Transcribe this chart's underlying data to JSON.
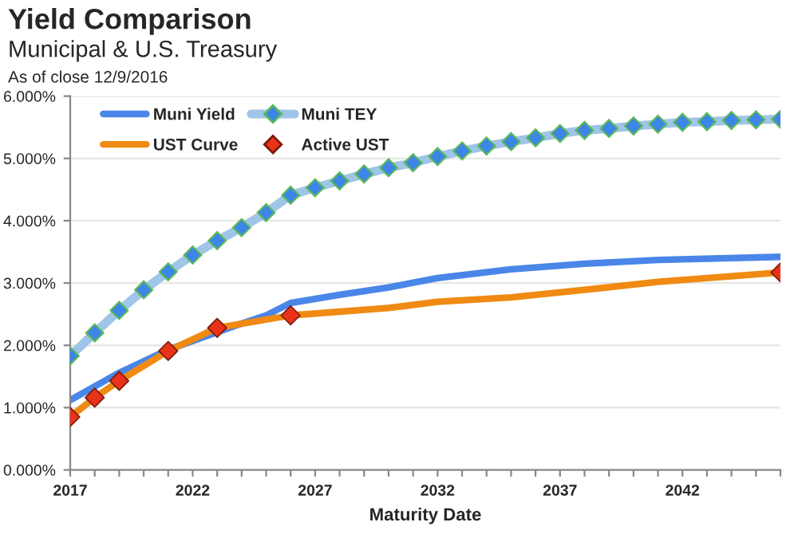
{
  "chart_data": {
    "type": "line",
    "title": "Yield Comparison",
    "subtitle": "Municipal & U.S. Treasury",
    "annotations": [
      "As of close 12/9/2016"
    ],
    "xlabel": "Maturity Date",
    "xlim": [
      2017,
      2046
    ],
    "xticks": [
      2017,
      {
        "value": 2018,
        "label": null
      },
      {
        "value": 2019,
        "label": null
      },
      {
        "value": 2020,
        "label": null
      },
      {
        "value": 2021,
        "label": null
      },
      2022,
      {
        "value": 2023,
        "label": null
      },
      {
        "value": 2024,
        "label": null
      },
      {
        "value": 2025,
        "label": null
      },
      {
        "value": 2026,
        "label": null
      },
      2027,
      {
        "value": 2028,
        "label": null
      },
      {
        "value": 2029,
        "label": null
      },
      {
        "value": 2030,
        "label": null
      },
      {
        "value": 2031,
        "label": null
      },
      2032,
      {
        "value": 2033,
        "label": null
      },
      {
        "value": 2034,
        "label": null
      },
      {
        "value": 2035,
        "label": null
      },
      {
        "value": 2036,
        "label": null
      },
      2037,
      {
        "value": 2038,
        "label": null
      },
      {
        "value": 2039,
        "label": null
      },
      {
        "value": 2040,
        "label": null
      },
      {
        "value": 2041,
        "label": null
      },
      2042,
      {
        "value": 2043,
        "label": null
      },
      {
        "value": 2044,
        "label": null
      },
      {
        "value": 2045,
        "label": null
      },
      {
        "value": 2046,
        "label": null
      }
    ],
    "ylim": [
      0,
      6
    ],
    "yticks": [
      {
        "value": 0,
        "label": "0.000%"
      },
      {
        "value": 1,
        "label": "1.000%"
      },
      {
        "value": 2,
        "label": "2.000%"
      },
      {
        "value": 3,
        "label": "3.000%"
      },
      {
        "value": 4,
        "label": "4.000%"
      },
      {
        "value": 5,
        "label": "5.000%"
      },
      {
        "value": 6,
        "label": "6.000%"
      }
    ],
    "grid": "y",
    "legend": "top left",
    "series": [
      {
        "name": "Muni Yield",
        "color": "#4a86e8",
        "marker": "none",
        "x": [
          2017,
          2019,
          2021,
          2022,
          2024,
          2025,
          2026,
          2028,
          2030,
          2032,
          2035,
          2038,
          2041,
          2046
        ],
        "values": [
          1.12,
          1.56,
          1.93,
          2.07,
          2.35,
          2.48,
          2.68,
          2.81,
          2.93,
          3.08,
          3.22,
          3.31,
          3.37,
          3.42
        ]
      },
      {
        "name": "Muni TEY",
        "color": "#9fc5e8",
        "marker": "diamond",
        "x": [
          2017,
          2018,
          2019,
          2020,
          2021,
          2022,
          2023,
          2024,
          2025,
          2026,
          2027,
          2028,
          2029,
          2030,
          2031,
          2032,
          2033,
          2034,
          2035,
          2036,
          2037,
          2038,
          2039,
          2040,
          2041,
          2042,
          2043,
          2044,
          2045,
          2046
        ],
        "values": [
          1.83,
          2.2,
          2.56,
          2.89,
          3.18,
          3.45,
          3.68,
          3.89,
          4.13,
          4.41,
          4.53,
          4.64,
          4.75,
          4.85,
          4.93,
          5.03,
          5.12,
          5.2,
          5.27,
          5.33,
          5.4,
          5.45,
          5.48,
          5.52,
          5.55,
          5.58,
          5.59,
          5.61,
          5.62,
          5.63
        ]
      },
      {
        "name": "UST Curve",
        "color": "#f08a12",
        "marker": "none",
        "x": [
          2017,
          2018,
          2019,
          2021,
          2023,
          2026,
          2030,
          2032,
          2035,
          2038,
          2041,
          2046
        ],
        "values": [
          0.85,
          1.16,
          1.43,
          1.91,
          2.28,
          2.48,
          2.6,
          2.7,
          2.77,
          2.89,
          3.02,
          3.17
        ]
      },
      {
        "name": "Active UST",
        "type": "scatter",
        "color": "#e8331a",
        "marker": "diamond",
        "x": [
          2017,
          2018,
          2019,
          2021,
          2023,
          2026,
          2046
        ],
        "values": [
          0.85,
          1.16,
          1.43,
          1.91,
          2.28,
          2.48,
          3.17
        ]
      }
    ]
  }
}
